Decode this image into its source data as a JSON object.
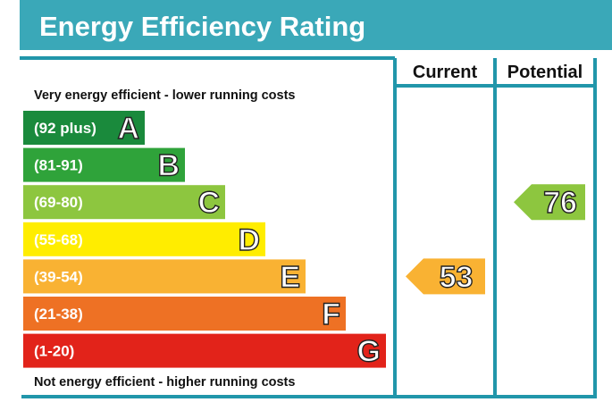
{
  "title": "Energy Efficiency Rating",
  "headers": {
    "current": "Current",
    "potential": "Potential"
  },
  "notes": {
    "top": "Very energy efficient - lower running costs",
    "bottom": "Not energy efficient - higher running costs"
  },
  "colors": {
    "title_bar": "#3aa8b8",
    "frame": "#2196aa",
    "text_dark": "#111111"
  },
  "chart_data": {
    "type": "bar",
    "categories": [
      "A",
      "B",
      "C",
      "D",
      "E",
      "F",
      "G"
    ],
    "bands": [
      {
        "letter": "A",
        "range": "(92 plus)",
        "min": 92,
        "max": 100,
        "color": "#1a8a3c"
      },
      {
        "letter": "B",
        "range": "(81-91)",
        "min": 81,
        "max": 91,
        "color": "#2fa33a"
      },
      {
        "letter": "C",
        "range": "(69-80)",
        "min": 69,
        "max": 80,
        "color": "#8dc63f"
      },
      {
        "letter": "D",
        "range": "(55-68)",
        "min": 55,
        "max": 68,
        "color": "#ffed00"
      },
      {
        "letter": "E",
        "range": "(39-54)",
        "min": 39,
        "max": 54,
        "color": "#f9b233"
      },
      {
        "letter": "F",
        "range": "(21-38)",
        "min": 21,
        "max": 38,
        "color": "#ee7124"
      },
      {
        "letter": "G",
        "range": "(1-20)",
        "min": 1,
        "max": 20,
        "color": "#e2231a"
      }
    ],
    "ratings": [
      {
        "column": "current",
        "value": 53,
        "band": "E",
        "color": "#f9b233"
      },
      {
        "column": "potential",
        "value": 76,
        "band": "C",
        "color": "#8dc63f"
      }
    ]
  }
}
